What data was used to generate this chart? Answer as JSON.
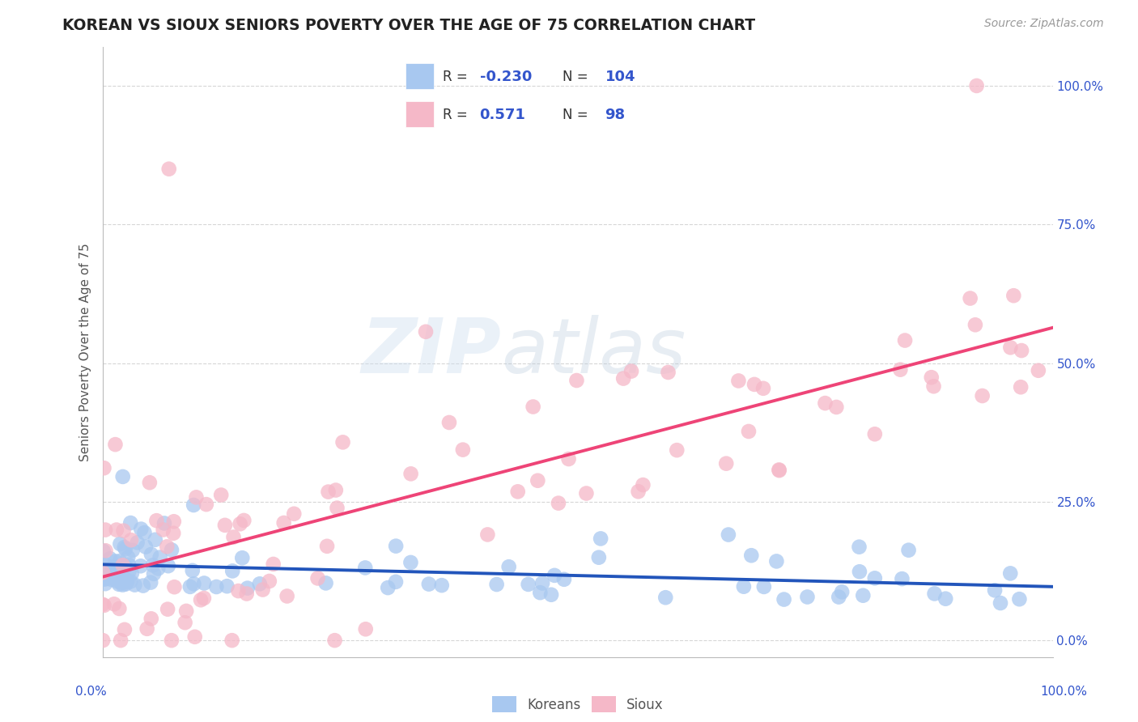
{
  "title": "KOREAN VS SIOUX SENIORS POVERTY OVER THE AGE OF 75 CORRELATION CHART",
  "source": "Source: ZipAtlas.com",
  "ylabel": "Seniors Poverty Over the Age of 75",
  "ytick_values": [
    0,
    25,
    50,
    75,
    100
  ],
  "xlim": [
    0,
    100
  ],
  "ylim": [
    -3,
    107
  ],
  "korean_color": "#A8C8F0",
  "sioux_color": "#F5B8C8",
  "korean_line_color": "#2255BB",
  "sioux_line_color": "#EE4477",
  "korean_R": -0.23,
  "korean_N": 104,
  "sioux_R": 0.571,
  "sioux_N": 98,
  "background_color": "#FFFFFF",
  "grid_color": "#CCCCCC",
  "title_color": "#222222",
  "axis_label_color": "#3355CC",
  "watermark_color": "#DDDDDD"
}
